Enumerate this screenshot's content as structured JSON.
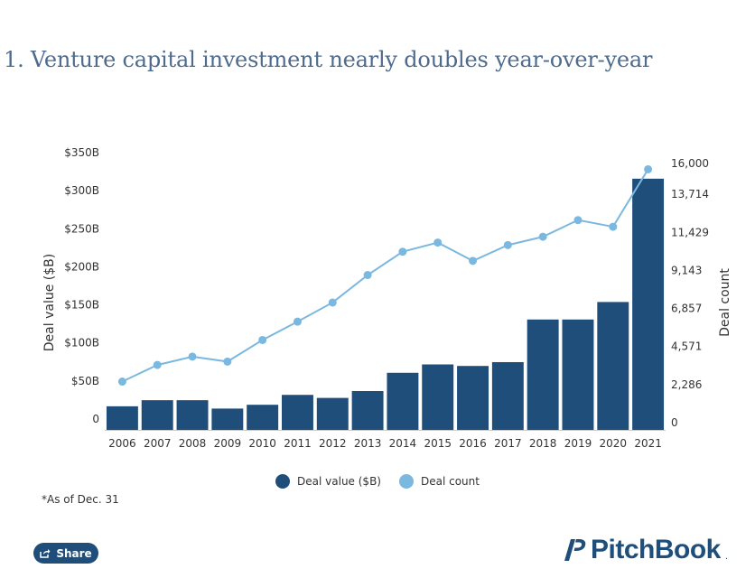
{
  "page": {
    "title": "1. Venture capital investment nearly doubles year-over-year",
    "note": "*As of Dec. 31",
    "share_label": "Share",
    "logo_text": "PitchBook",
    "logo_mark": "."
  },
  "chart_data": {
    "type": "bar",
    "title": "1. Venture capital investment nearly doubles year-over-year",
    "categories": [
      "2006",
      "2007",
      "2008",
      "2009",
      "2010",
      "2011",
      "2012",
      "2013",
      "2014",
      "2015",
      "2016",
      "2017",
      "2018",
      "2019",
      "2020",
      "2021"
    ],
    "ylabel": "Deal value ($B)",
    "y2label": "Deal count",
    "ylim": [
      0,
      350
    ],
    "y2lim": [
      0,
      16000
    ],
    "yticks": [
      "0",
      "$50B",
      "$100B",
      "$150B",
      "$200B",
      "$250B",
      "$300B",
      "$350B"
    ],
    "y2ticks": [
      "0",
      "2,286",
      "4,571",
      "6,857",
      "9,143",
      "11,429",
      "13,714",
      "16,000"
    ],
    "series": [
      {
        "name": "Deal value ($B)",
        "type": "bar",
        "axis": "left",
        "color": "#1f4e7a",
        "values": [
          31,
          39,
          39,
          28,
          33,
          46,
          42,
          51,
          75,
          86,
          84,
          89,
          145,
          145,
          168,
          330
        ]
      },
      {
        "name": "Deal count",
        "type": "line",
        "axis": "right",
        "color": "#7ab8e0",
        "values": [
          2900,
          3900,
          4400,
          4100,
          5400,
          6500,
          7650,
          9300,
          10700,
          11250,
          10150,
          11100,
          11600,
          12600,
          12200,
          15650
        ]
      }
    ],
    "legend": "bottom-center",
    "grid": false
  }
}
